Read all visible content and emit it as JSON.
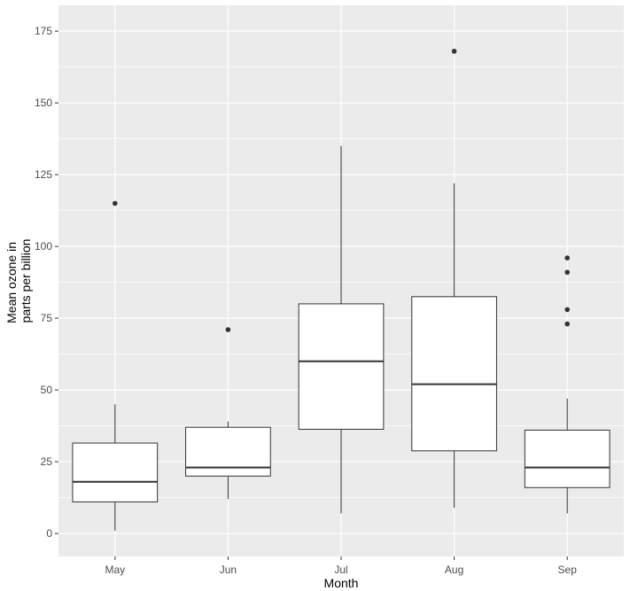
{
  "chart_data": {
    "type": "boxplot",
    "title": "",
    "xlabel": "Month",
    "ylabel_lines": [
      "Mean ozone in",
      "parts per billion"
    ],
    "categories": [
      "May",
      "Jun",
      "Jul",
      "Aug",
      "Sep"
    ],
    "ylim": [
      -8,
      184
    ],
    "yticks": [
      0,
      25,
      50,
      75,
      100,
      125,
      150,
      175
    ],
    "boxes": [
      {
        "category": "May",
        "whisker_low": 1,
        "q1": 11,
        "median": 18,
        "q3": 31.5,
        "whisker_high": 45,
        "outliers": [
          115
        ]
      },
      {
        "category": "Jun",
        "whisker_low": 12,
        "q1": 20,
        "median": 23,
        "q3": 37,
        "whisker_high": 39,
        "outliers": [
          71
        ]
      },
      {
        "category": "Jul",
        "whisker_low": 7,
        "q1": 36.3,
        "median": 60,
        "q3": 80,
        "whisker_high": 135,
        "outliers": []
      },
      {
        "category": "Aug",
        "whisker_low": 9,
        "q1": 28.8,
        "median": 52,
        "q3": 82.5,
        "whisker_high": 122,
        "outliers": [
          168
        ]
      },
      {
        "category": "Sep",
        "whisker_low": 7,
        "q1": 16,
        "median": 23,
        "q3": 36,
        "whisker_high": 47,
        "outliers": [
          73,
          78,
          91,
          96
        ]
      }
    ],
    "grid": true,
    "legend": "none",
    "colors": {
      "panel_background": "#ebebeb",
      "grid_major": "#ffffff",
      "box_fill": "#ffffff",
      "box_stroke": "#333333",
      "outlier": "#333333",
      "tick": "#333333"
    }
  }
}
